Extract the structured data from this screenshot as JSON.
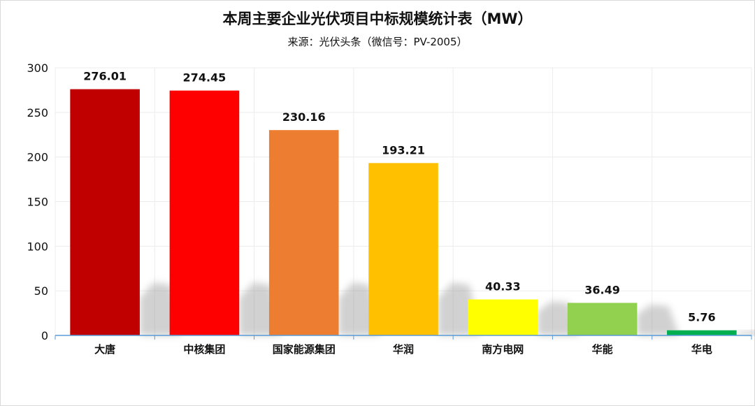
{
  "chart_data": {
    "type": "bar",
    "title": "本周主要企业光伏项目中标规模统计表（MW）",
    "subtitle": "来源：光伏头条（微信号：PV-2005）",
    "xlabel": "",
    "ylabel": "",
    "categories": [
      "大唐",
      "中核集团",
      "国家能源集团",
      "华润",
      "南方电网",
      "华能",
      "华电"
    ],
    "values": [
      276.01,
      274.45,
      230.16,
      193.21,
      40.33,
      36.49,
      5.76
    ],
    "data_labels": [
      "276.01",
      "274.45",
      "230.16",
      "193.21",
      "40.33",
      "36.49",
      "5.76"
    ],
    "colors": [
      "#c00000",
      "#ff0000",
      "#ed7d31",
      "#ffc000",
      "#ffff00",
      "#92d050",
      "#00b050"
    ],
    "ylim": [
      0,
      300
    ],
    "yticks": [
      0,
      50,
      100,
      150,
      200,
      250,
      300
    ],
    "grid": true,
    "legend": "none"
  }
}
